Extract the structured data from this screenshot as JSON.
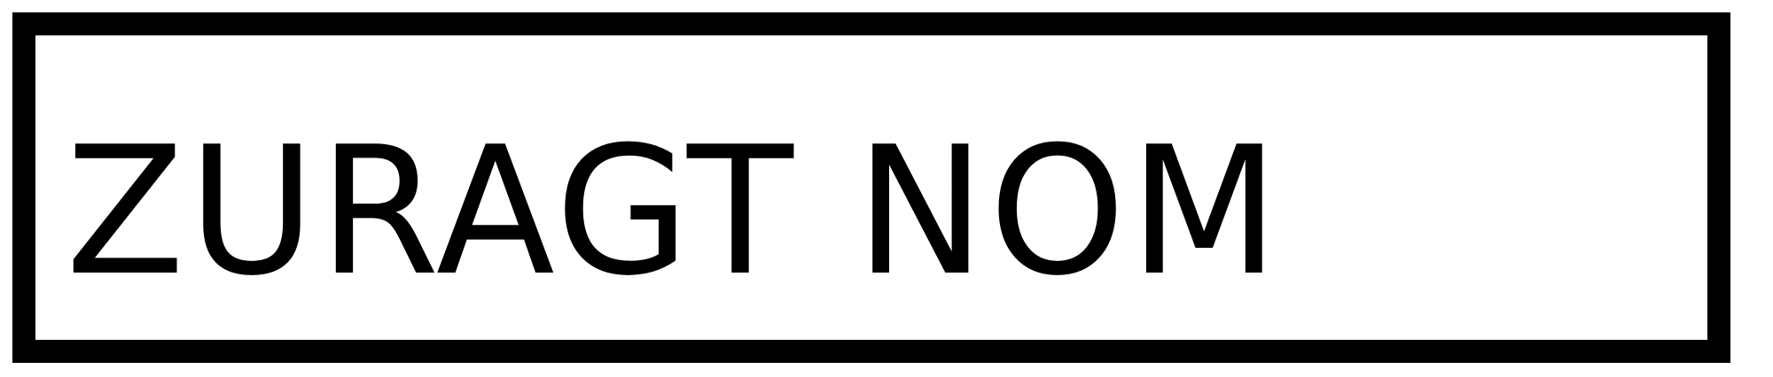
{
  "sign": {
    "text": "ZURAGT NOM",
    "text_color": "#000000",
    "border_color": "#000000",
    "background_color": "#ffffff"
  }
}
